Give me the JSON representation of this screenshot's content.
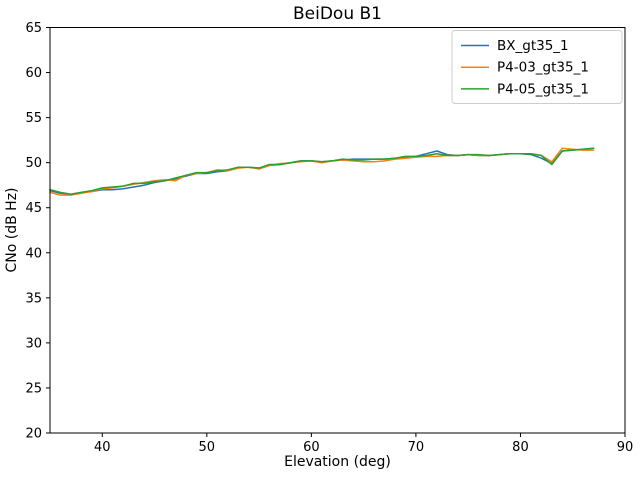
{
  "chart_data": {
    "type": "line",
    "title": "BeiDou B1",
    "xlabel": "Elevation (deg)",
    "ylabel": "CNo (dB Hz)",
    "xlim": [
      35,
      90
    ],
    "ylim": [
      20,
      65
    ],
    "xticks": [
      40,
      50,
      60,
      70,
      80,
      90
    ],
    "yticks": [
      20,
      25,
      30,
      35,
      40,
      45,
      50,
      55,
      60,
      65
    ],
    "grid": false,
    "legend_position": "upper right",
    "x": [
      35,
      36,
      37,
      38,
      39,
      40,
      41,
      42,
      43,
      44,
      45,
      46,
      47,
      48,
      49,
      50,
      51,
      52,
      53,
      54,
      55,
      56,
      57,
      58,
      59,
      60,
      61,
      62,
      63,
      64,
      65,
      66,
      67,
      68,
      69,
      70,
      71,
      72,
      73,
      74,
      75,
      76,
      77,
      78,
      79,
      80,
      81,
      82,
      83,
      84,
      85,
      86,
      87
    ],
    "series": [
      {
        "name": "BX_gt35_1",
        "color": "#1f77b4",
        "values": [
          46.9,
          46.6,
          46.5,
          46.7,
          46.8,
          47.0,
          47.0,
          47.1,
          47.3,
          47.5,
          47.8,
          48.0,
          48.2,
          48.5,
          48.8,
          48.8,
          49.0,
          49.1,
          49.5,
          49.5,
          49.4,
          49.7,
          49.8,
          50.0,
          50.2,
          50.2,
          50.1,
          50.2,
          50.3,
          50.4,
          50.4,
          50.4,
          50.4,
          50.5,
          50.6,
          50.7,
          51.0,
          51.3,
          50.9,
          50.8,
          50.9,
          50.8,
          50.8,
          50.9,
          51.0,
          51.0,
          50.9,
          50.5,
          49.9,
          51.3,
          51.4,
          51.5,
          51.6
        ]
      },
      {
        "name": "P4-03_gt35_1",
        "color": "#ff7f0e",
        "values": [
          46.7,
          46.4,
          46.4,
          46.6,
          46.8,
          47.1,
          47.2,
          47.4,
          47.6,
          47.8,
          48.0,
          48.1,
          48.0,
          48.6,
          48.8,
          48.9,
          49.2,
          49.1,
          49.4,
          49.5,
          49.3,
          49.7,
          49.9,
          50.0,
          50.1,
          50.2,
          50.0,
          50.2,
          50.3,
          50.2,
          50.1,
          50.1,
          50.2,
          50.4,
          50.5,
          50.6,
          50.7,
          50.7,
          50.8,
          50.8,
          50.9,
          50.8,
          50.8,
          50.9,
          51.0,
          51.0,
          51.0,
          50.8,
          50.1,
          51.6,
          51.5,
          51.4,
          51.4
        ]
      },
      {
        "name": "P4-05_gt35_1",
        "color": "#2ca02c",
        "values": [
          47.0,
          46.7,
          46.5,
          46.7,
          46.9,
          47.2,
          47.3,
          47.4,
          47.7,
          47.7,
          47.9,
          48.0,
          48.3,
          48.6,
          48.9,
          48.9,
          49.1,
          49.2,
          49.5,
          49.5,
          49.4,
          49.8,
          49.8,
          50.0,
          50.2,
          50.2,
          50.1,
          50.2,
          50.4,
          50.3,
          50.3,
          50.4,
          50.4,
          50.5,
          50.7,
          50.7,
          50.8,
          51.0,
          50.8,
          50.8,
          50.9,
          50.9,
          50.8,
          50.9,
          51.0,
          51.0,
          51.0,
          50.8,
          49.8,
          51.3,
          51.4,
          51.5,
          51.6
        ]
      }
    ],
    "style": {
      "spine_color": "#000000",
      "tick_color": "#000000",
      "legend_border_color": "#cccccc",
      "legend_background": "#ffffff",
      "plot_background": "#ffffff",
      "line_width": 1.5
    }
  }
}
